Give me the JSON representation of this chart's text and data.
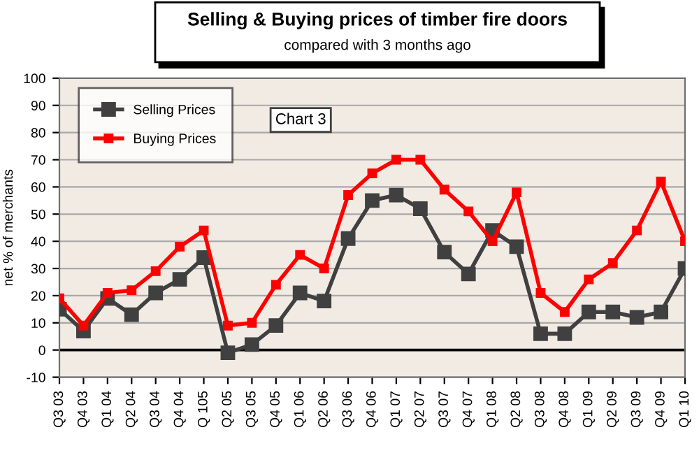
{
  "chart_data": {
    "type": "line",
    "title": "Selling & Buying prices of timber fire doors",
    "subtitle": "compared with 3 months ago",
    "ylabel": "net % of merchants",
    "categories": [
      "Q3 03",
      "Q4 03",
      "Q1 04",
      "Q2 04",
      "Q3 04",
      "Q4 04",
      "Q 105",
      "Q2 05",
      "Q3 05",
      "Q4 05",
      "Q1 06",
      "Q2 06",
      "Q3 06",
      "Q4 06",
      "Q1 07",
      "Q2 07",
      "Q3 07",
      "Q4 07",
      "Q1 08",
      "Q2 08",
      "Q3 08",
      "Q4 08",
      "Q1 09",
      "Q2 09",
      "Q3 09",
      "Q4 09",
      "Q1 10"
    ],
    "series": [
      {
        "name": "Selling Prices",
        "color": "#404040",
        "values": [
          15,
          7,
          19,
          13,
          21,
          26,
          34,
          -1,
          2,
          9,
          21,
          18,
          41,
          55,
          57,
          52,
          36,
          28,
          44,
          38,
          6,
          6,
          14,
          14,
          12,
          14,
          30
        ]
      },
      {
        "name": "Buying Prices",
        "color": "#ff0000",
        "values": [
          19,
          9,
          21,
          22,
          29,
          38,
          44,
          9,
          10,
          24,
          35,
          30,
          57,
          65,
          70,
          70,
          59,
          51,
          40,
          58,
          21,
          14,
          26,
          32,
          44,
          62,
          40
        ]
      }
    ],
    "ylim": [
      -10,
      100
    ],
    "yticks": [
      -10,
      0,
      10,
      20,
      30,
      40,
      50,
      60,
      70,
      80,
      90,
      100
    ],
    "ref_lines": [
      {
        "axis": "y",
        "value": 0,
        "color": "#000000"
      }
    ],
    "annotations": [
      "Chart 3"
    ],
    "grid": "y",
    "legend": "top left",
    "marker": "square",
    "line_style": "solid"
  }
}
